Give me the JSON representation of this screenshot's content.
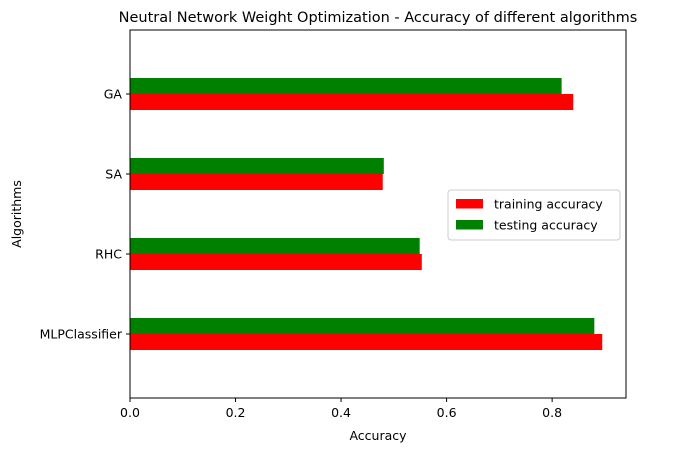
{
  "chart_data": {
    "type": "bar",
    "orientation": "horizontal",
    "title": "Neutral Network Weight Optimization - Accuracy of different algorithms",
    "xlabel": "Accuracy",
    "ylabel": "Algorithms",
    "categories": [
      "MLPClassifier",
      "RHC",
      "SA",
      "GA"
    ],
    "xlim": [
      0.0,
      0.94
    ],
    "xticks": [
      0.0,
      0.2,
      0.4,
      0.6,
      0.8
    ],
    "xtick_labels": [
      "0.0",
      "0.2",
      "0.4",
      "0.6",
      "0.8"
    ],
    "grid": false,
    "legend_position": "center-right",
    "series": [
      {
        "name": "training accuracy",
        "color": "#ff0000",
        "values": [
          0.895,
          0.553,
          0.479,
          0.84
        ]
      },
      {
        "name": "testing accuracy",
        "color": "#008000",
        "values": [
          0.88,
          0.549,
          0.481,
          0.818
        ]
      }
    ]
  }
}
